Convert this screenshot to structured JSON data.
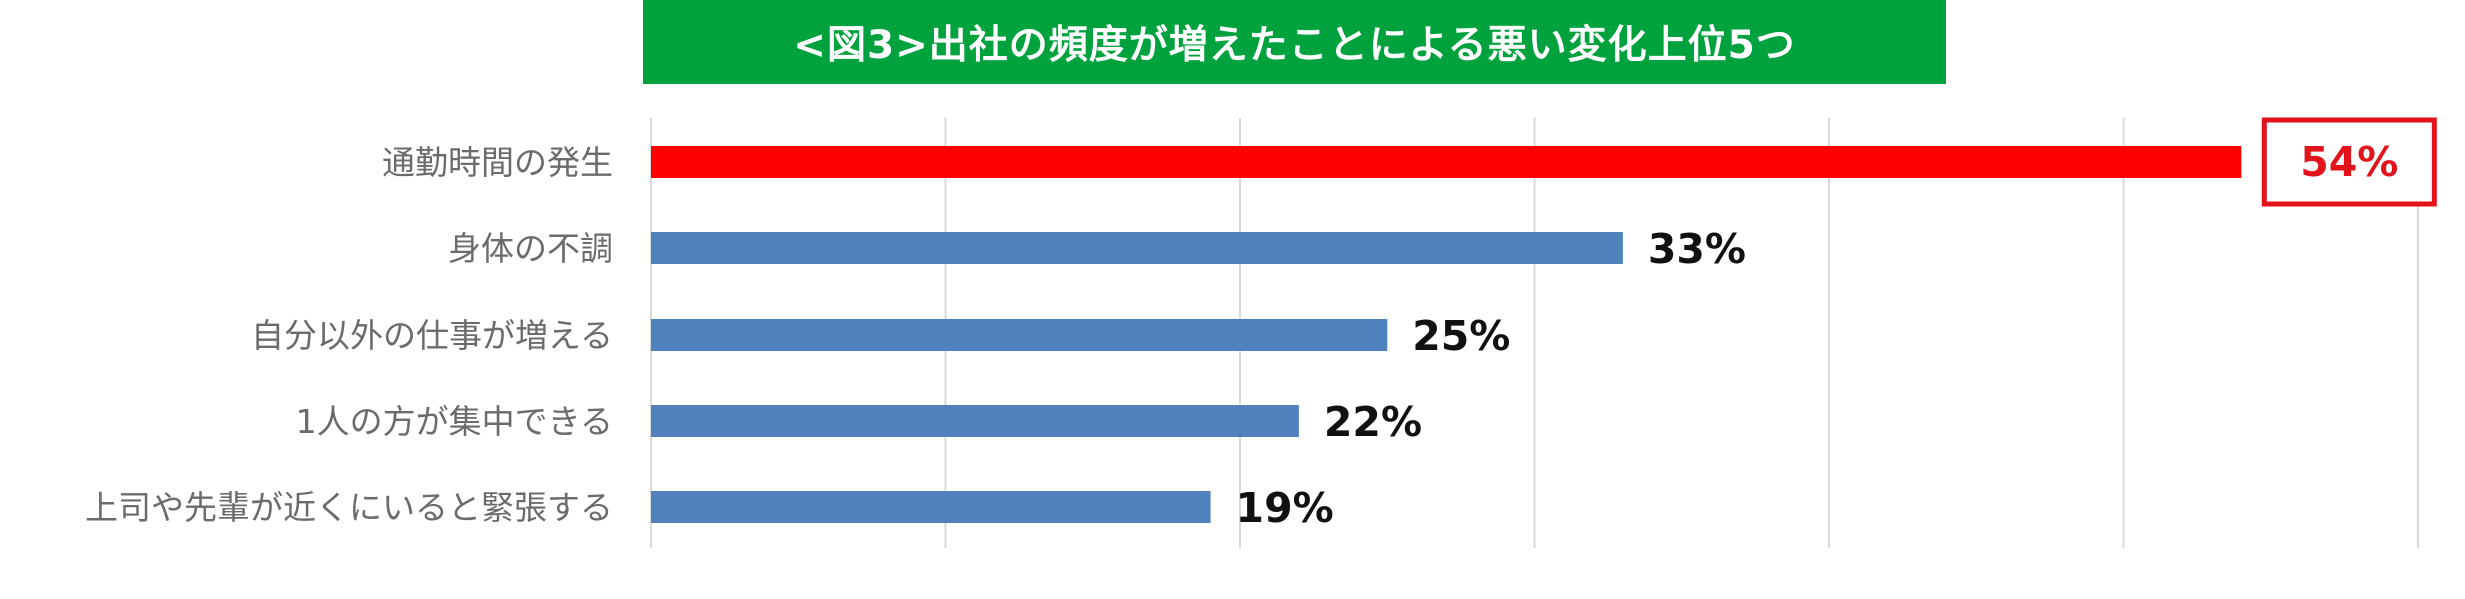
{
  "chart_data": {
    "type": "bar",
    "orientation": "horizontal",
    "title": "<図3>出社の頻度が増えたことによる悪い変化上位5つ",
    "categories": [
      "通勤時間の発生",
      "身体の不調",
      "自分以外の仕事が増える",
      "1人の方が集中できる",
      "上司や先輩が近くにいると緊張する"
    ],
    "values": [
      54,
      33,
      25,
      22,
      19
    ],
    "value_labels": [
      "54%",
      "33%",
      "25%",
      "22%",
      "19%"
    ],
    "highlight_index": 0,
    "xlim": [
      0,
      60
    ],
    "grid": true,
    "colors": {
      "title_bg": "#00a23d",
      "bar": "#4f81bd",
      "highlight_bar": "#ff0000",
      "highlight_box": "#e3131b",
      "grid": "#d9d9d9"
    }
  }
}
